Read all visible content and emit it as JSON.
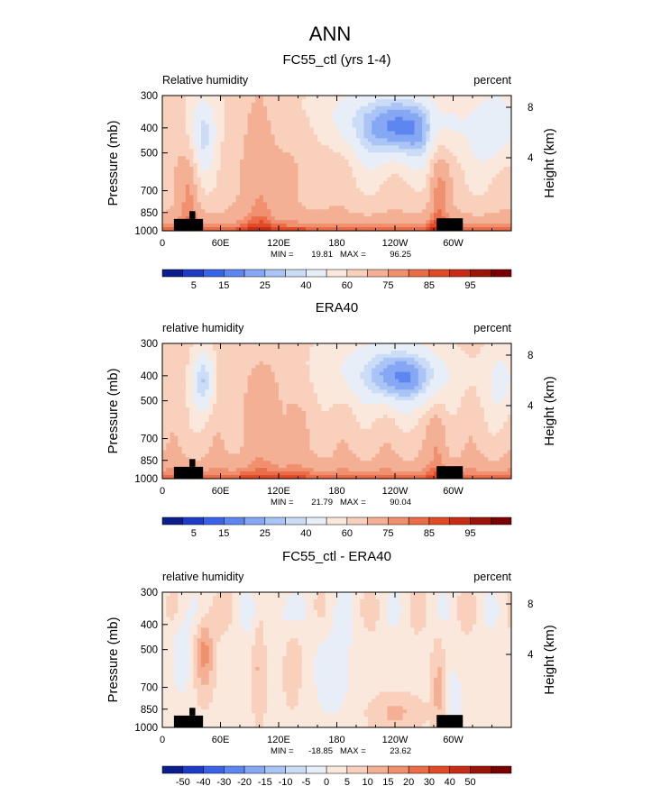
{
  "figure": {
    "title": "ANN",
    "colors": {
      "rh_scale": [
        "#0a1e8c",
        "#1c3cc8",
        "#3a64e8",
        "#5e86f0",
        "#86a8f4",
        "#aac4f6",
        "#cbdcf6",
        "#e8eef8",
        "#fbe8dc",
        "#f8d0bc",
        "#f4b094",
        "#f0906e",
        "#ea6c48",
        "#e04a26",
        "#c82c14",
        "#9c1408",
        "#780000"
      ],
      "diff_scale": [
        "#0a1e8c",
        "#1c3cc8",
        "#3a64e8",
        "#5e86f0",
        "#86a8f4",
        "#aac4f6",
        "#cbdcf6",
        "#e8eef8",
        "#fbe8dc",
        "#f8d0bc",
        "#f4b094",
        "#f0906e",
        "#ea6c48",
        "#e04a26",
        "#c82c14",
        "#9c1408",
        "#780000"
      ],
      "topography": "#000000"
    }
  },
  "chart_data": [
    {
      "type": "heatmap",
      "title": "FC55_ctl (yrs 1-4)",
      "left_label": "Relative humidity",
      "right_label": "percent",
      "ylabel": "Pressure (mb)",
      "y2label": "Height (km)",
      "x_ticks": [
        "0",
        "60E",
        "120E",
        "180",
        "120W",
        "60W"
      ],
      "x_tick_lon": [
        0,
        60,
        120,
        180,
        240,
        300
      ],
      "xlim": [
        0,
        360
      ],
      "y_ticks": [
        "300",
        "400",
        "500",
        "700",
        "850",
        "1000"
      ],
      "y_tick_p": [
        300,
        400,
        500,
        700,
        850,
        1000
      ],
      "ylim": [
        300,
        1000
      ],
      "y_scale": "log",
      "y2_ticks": [
        "8",
        "4"
      ],
      "y2_tick_km": [
        8,
        4
      ],
      "stats": {
        "min_label": "MIN =",
        "min": "19.81",
        "max_label": "MAX =",
        "max": "96.25"
      },
      "colorbar_labels": [
        "5",
        "15",
        "25",
        "40",
        "60",
        "75",
        "85",
        "95"
      ],
      "approx_rh_fields": {
        "features": [
          {
            "lon": 40,
            "p": 420,
            "rh": 28
          },
          {
            "lon": 190,
            "p": 380,
            "rh": 35
          },
          {
            "lon": 255,
            "p": 420,
            "rh": 22
          },
          {
            "lon": 340,
            "p": 390,
            "rh": 30
          },
          {
            "lon": 285,
            "p": 700,
            "rh": 85
          },
          {
            "lon": 100,
            "p": 600,
            "rh": 75
          }
        ]
      }
    },
    {
      "type": "heatmap",
      "title": "ERA40",
      "left_label": "relative humidity",
      "right_label": "percent",
      "ylabel": "Pressure (mb)",
      "y2label": "Height (km)",
      "x_ticks": [
        "0",
        "60E",
        "120E",
        "180",
        "120W",
        "60W"
      ],
      "x_tick_lon": [
        0,
        60,
        120,
        180,
        240,
        300
      ],
      "xlim": [
        0,
        360
      ],
      "y_ticks": [
        "300",
        "400",
        "500",
        "700",
        "850",
        "1000"
      ],
      "y_tick_p": [
        300,
        400,
        500,
        700,
        850,
        1000
      ],
      "ylim": [
        300,
        1000
      ],
      "y_scale": "log",
      "y2_ticks": [
        "8",
        "4"
      ],
      "y2_tick_km": [
        8,
        4
      ],
      "stats": {
        "min_label": "MIN =",
        "min": "21.79",
        "max_label": "MAX =",
        "max": "90.04"
      },
      "colorbar_labels": [
        "5",
        "15",
        "25",
        "40",
        "60",
        "75",
        "85",
        "95"
      ]
    },
    {
      "type": "heatmap",
      "title": "FC55_ctl - ERA40",
      "left_label": "relative humidity",
      "right_label": "percent",
      "ylabel": "Pressure (mb)",
      "y2label": "Height (km)",
      "x_ticks": [
        "0",
        "60E",
        "120E",
        "180",
        "120W",
        "60W"
      ],
      "x_tick_lon": [
        0,
        60,
        120,
        180,
        240,
        300
      ],
      "xlim": [
        0,
        360
      ],
      "y_ticks": [
        "300",
        "400",
        "500",
        "700",
        "850",
        "1000"
      ],
      "y_tick_p": [
        300,
        400,
        500,
        700,
        850,
        1000
      ],
      "ylim": [
        300,
        1000
      ],
      "y_scale": "log",
      "y2_ticks": [
        "8",
        "4"
      ],
      "y2_tick_km": [
        8,
        4
      ],
      "stats": {
        "min_label": "MIN =",
        "min": "-18.85",
        "max_label": "MAX =",
        "max": "23.62"
      },
      "colorbar_labels": [
        "-50",
        "-40",
        "-30",
        "-20",
        "-15",
        "-10",
        "-5",
        "0",
        "5",
        "10",
        "15",
        "20",
        "30",
        "40",
        "50"
      ]
    }
  ]
}
